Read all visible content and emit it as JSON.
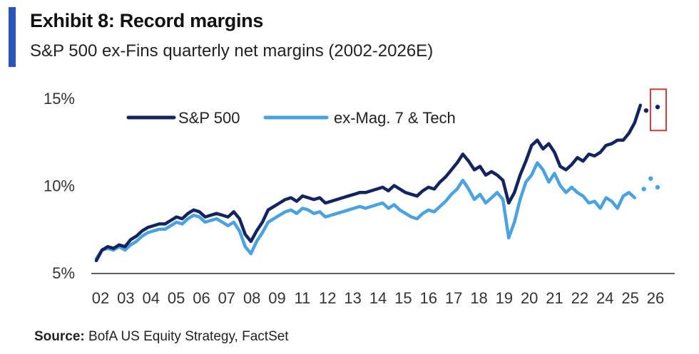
{
  "header": {
    "title": "Exhibit 8: Record margins",
    "subtitle": "S&P 500 ex-Fins quarterly net margins (2002-2026E)",
    "accent_color": "#2a54b8"
  },
  "footer": {
    "source_label": "Source:",
    "source_text": " BofA US Equity Strategy, FactSet"
  },
  "chart_data": {
    "type": "line",
    "title": "",
    "xlabel": "",
    "ylabel": "",
    "ylim": [
      5,
      15.8
    ],
    "xlim": [
      2002,
      2027
    ],
    "yticks": [
      5,
      10,
      15
    ],
    "ytick_labels": [
      "5%",
      "10%",
      "15%"
    ],
    "xtick_labels": [
      "02",
      "03",
      "04",
      "05",
      "06",
      "07",
      "08",
      "09",
      "11",
      "12",
      "13",
      "14",
      "15",
      "16",
      "17",
      "18",
      "19",
      "20",
      "21",
      "22",
      "24",
      "25",
      "26"
    ],
    "grid": false,
    "legend_position": "top-left",
    "series": [
      {
        "name": "S&P 500",
        "color": "#14245e",
        "x": [
          2002.0,
          2002.25,
          2002.5,
          2002.75,
          2003.0,
          2003.25,
          2003.5,
          2003.75,
          2004.0,
          2004.25,
          2004.5,
          2004.75,
          2005.0,
          2005.25,
          2005.5,
          2005.75,
          2006.0,
          2006.25,
          2006.5,
          2006.75,
          2007.0,
          2007.25,
          2007.5,
          2007.75,
          2008.0,
          2008.25,
          2008.5,
          2008.75,
          2009.0,
          2009.25,
          2009.5,
          2009.75,
          2010.0,
          2010.25,
          2010.5,
          2010.75,
          2011.0,
          2011.25,
          2011.5,
          2011.75,
          2012.0,
          2012.25,
          2012.5,
          2012.75,
          2013.0,
          2013.25,
          2013.5,
          2013.75,
          2014.0,
          2014.25,
          2014.5,
          2014.75,
          2015.0,
          2015.25,
          2015.5,
          2015.75,
          2016.0,
          2016.25,
          2016.5,
          2016.75,
          2017.0,
          2017.25,
          2017.5,
          2017.75,
          2018.0,
          2018.25,
          2018.5,
          2018.75,
          2019.0,
          2019.25,
          2019.5,
          2019.75,
          2020.0,
          2020.25,
          2020.5,
          2020.75,
          2021.0,
          2021.25,
          2021.5,
          2021.75,
          2022.0,
          2022.25,
          2022.5,
          2022.75,
          2023.0,
          2023.25,
          2023.5,
          2023.75,
          2024.0,
          2024.25,
          2024.5,
          2024.75,
          2025.0,
          2025.25,
          2025.5,
          2025.75
        ],
        "values": [
          5.7,
          6.3,
          6.5,
          6.4,
          6.6,
          6.5,
          6.9,
          7.1,
          7.4,
          7.6,
          7.7,
          7.8,
          7.8,
          8.0,
          8.2,
          8.1,
          8.4,
          8.6,
          8.5,
          8.2,
          8.3,
          8.4,
          8.3,
          8.2,
          8.5,
          8.1,
          7.2,
          6.8,
          7.4,
          7.9,
          8.6,
          8.8,
          9.0,
          9.2,
          9.3,
          9.1,
          9.4,
          9.3,
          9.2,
          9.3,
          9.0,
          9.1,
          9.2,
          9.3,
          9.4,
          9.5,
          9.6,
          9.6,
          9.7,
          9.8,
          9.9,
          9.7,
          10.0,
          9.8,
          9.6,
          9.5,
          9.4,
          9.7,
          9.9,
          9.8,
          10.2,
          10.5,
          10.9,
          11.3,
          11.8,
          11.4,
          10.9,
          11.1,
          10.6,
          10.8,
          10.6,
          10.3,
          9.0,
          9.6,
          10.6,
          11.4,
          12.3,
          12.6,
          12.1,
          12.4,
          11.9,
          11.1,
          10.9,
          11.2,
          11.6,
          11.4,
          11.8,
          11.7,
          11.9,
          12.3,
          12.4,
          12.6,
          12.6,
          13.0,
          13.6,
          14.6
        ]
      },
      {
        "name": "ex-Mag. 7 & Tech",
        "color": "#4aa3df",
        "x": [
          2002.0,
          2002.25,
          2002.5,
          2002.75,
          2003.0,
          2003.25,
          2003.5,
          2003.75,
          2004.0,
          2004.25,
          2004.5,
          2004.75,
          2005.0,
          2005.25,
          2005.5,
          2005.75,
          2006.0,
          2006.25,
          2006.5,
          2006.75,
          2007.0,
          2007.25,
          2007.5,
          2007.75,
          2008.0,
          2008.25,
          2008.5,
          2008.75,
          2009.0,
          2009.25,
          2009.5,
          2009.75,
          2010.0,
          2010.25,
          2010.5,
          2010.75,
          2011.0,
          2011.25,
          2011.5,
          2011.75,
          2012.0,
          2012.25,
          2012.5,
          2012.75,
          2013.0,
          2013.25,
          2013.5,
          2013.75,
          2014.0,
          2014.25,
          2014.5,
          2014.75,
          2015.0,
          2015.25,
          2015.5,
          2015.75,
          2016.0,
          2016.25,
          2016.5,
          2016.75,
          2017.0,
          2017.25,
          2017.5,
          2017.75,
          2018.0,
          2018.25,
          2018.5,
          2018.75,
          2019.0,
          2019.25,
          2019.5,
          2019.75,
          2020.0,
          2020.25,
          2020.5,
          2020.75,
          2021.0,
          2021.25,
          2021.5,
          2021.75,
          2022.0,
          2022.25,
          2022.5,
          2022.75,
          2023.0,
          2023.25,
          2023.5,
          2023.75,
          2024.0,
          2024.25,
          2024.5,
          2024.75,
          2025.0,
          2025.25,
          2025.5
        ],
        "values": [
          5.8,
          6.3,
          6.4,
          6.3,
          6.5,
          6.3,
          6.6,
          6.8,
          7.1,
          7.3,
          7.4,
          7.5,
          7.5,
          7.7,
          7.9,
          7.8,
          8.1,
          8.3,
          8.2,
          7.9,
          8.0,
          8.1,
          7.9,
          7.7,
          7.9,
          7.4,
          6.5,
          6.1,
          6.8,
          7.3,
          7.9,
          8.1,
          8.3,
          8.5,
          8.6,
          8.4,
          8.7,
          8.6,
          8.4,
          8.5,
          8.2,
          8.3,
          8.4,
          8.5,
          8.6,
          8.7,
          8.8,
          8.7,
          8.8,
          8.9,
          9.0,
          8.7,
          8.9,
          8.6,
          8.4,
          8.2,
          8.1,
          8.4,
          8.6,
          8.5,
          8.8,
          9.1,
          9.5,
          9.8,
          10.3,
          9.8,
          9.2,
          9.5,
          9.0,
          9.3,
          9.6,
          9.2,
          7.0,
          7.9,
          9.2,
          10.2,
          10.6,
          11.3,
          10.9,
          10.2,
          10.7,
          10.0,
          9.6,
          9.9,
          9.6,
          9.4,
          9.0,
          9.1,
          8.7,
          9.3,
          9.1,
          8.7,
          9.4,
          9.6,
          9.3
        ]
      }
    ],
    "estimates": [
      {
        "series": "S&P 500",
        "x": [
          2026.0,
          2026.5
        ],
        "values": [
          14.3,
          14.5
        ]
      },
      {
        "series": "ex-Mag. 7 & Tech",
        "x": [
          2025.9,
          2026.2,
          2026.5
        ],
        "values": [
          9.8,
          10.4,
          9.9
        ]
      }
    ],
    "highlight_color": "#d23b3b"
  }
}
